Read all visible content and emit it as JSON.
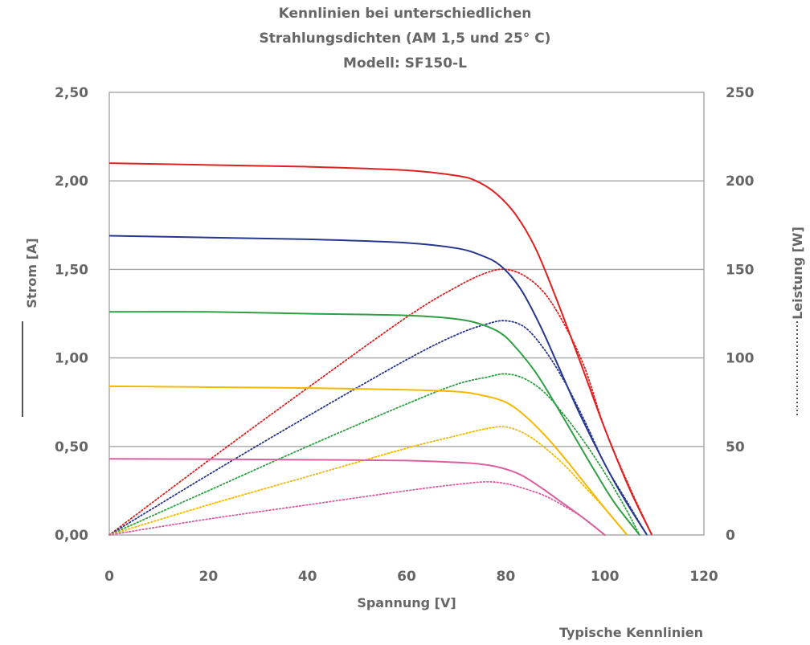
{
  "chart_data": {
    "type": "line",
    "title": [
      "Kennlinien bei unterschiedlichen",
      "Strahlungsdichten (AM 1,5 und 25° C)",
      "Modell: SF150-L"
    ],
    "xlabel": "Spannung [V]",
    "ylabel": "Strom [A]",
    "y2label": "Leistung [W]",
    "footnote": "Typische Kennlinien",
    "xlim": [
      0,
      120
    ],
    "ylim": [
      0,
      2.5
    ],
    "y2lim": [
      0,
      250
    ],
    "x_ticks": [
      "0",
      "20",
      "40",
      "60",
      "80",
      "100",
      "120"
    ],
    "y_ticks": [
      "0,00",
      "0,50",
      "1,00",
      "1,50",
      "2,00",
      "2,50"
    ],
    "y2_ticks": [
      "0",
      "50",
      "100",
      "150",
      "200",
      "250"
    ],
    "grid": "horizontal",
    "line_styles": {
      "current": "solid",
      "power": "dotted"
    },
    "series": [
      {
        "color": "#e02020",
        "current": {
          "x": [
            0,
            20,
            40,
            60,
            70,
            74,
            78,
            82,
            86,
            90,
            95,
            100,
            105,
            109.5
          ],
          "y": [
            2.1,
            2.09,
            2.08,
            2.06,
            2.03,
            2.0,
            1.93,
            1.81,
            1.62,
            1.35,
            0.98,
            0.6,
            0.26,
            0.0
          ]
        },
        "power": {
          "x": [
            0,
            20,
            40,
            60,
            70,
            76,
            80,
            84,
            88,
            92,
            96,
            100,
            105,
            109.5
          ],
          "y": [
            0,
            42,
            83,
            123,
            140,
            148,
            150,
            146,
            136,
            118,
            94,
            60,
            27,
            0
          ]
        }
      },
      {
        "color": "#26378d",
        "current": {
          "x": [
            0,
            20,
            40,
            60,
            70,
            75,
            79,
            83,
            87,
            91,
            95,
            100,
            104,
            108.5
          ],
          "y": [
            1.69,
            1.68,
            1.67,
            1.65,
            1.62,
            1.58,
            1.52,
            1.39,
            1.18,
            0.93,
            0.68,
            0.4,
            0.2,
            0.0
          ]
        },
        "power": {
          "x": [
            0,
            20,
            40,
            60,
            70,
            76,
            80,
            84,
            88,
            92,
            96,
            100,
            104,
            108.5
          ],
          "y": [
            0,
            34,
            67,
            99,
            113,
            119,
            121,
            117,
            104,
            86,
            64,
            40,
            21,
            0
          ]
        }
      },
      {
        "color": "#2ea043",
        "current": {
          "x": [
            0,
            20,
            40,
            60,
            70,
            75,
            79,
            82,
            86,
            90,
            94,
            98,
            102,
            107
          ],
          "y": [
            1.26,
            1.26,
            1.25,
            1.24,
            1.22,
            1.19,
            1.14,
            1.06,
            0.92,
            0.74,
            0.55,
            0.36,
            0.18,
            0.0
          ]
        },
        "power": {
          "x": [
            0,
            20,
            40,
            60,
            70,
            76,
            80,
            84,
            88,
            92,
            96,
            100,
            104,
            107
          ],
          "y": [
            0,
            25,
            50,
            74,
            85,
            89,
            91,
            88,
            80,
            67,
            52,
            35,
            16,
            0
          ]
        }
      },
      {
        "color": "#f5b800",
        "current": {
          "x": [
            0,
            20,
            40,
            60,
            70,
            75,
            80,
            84,
            88,
            92,
            96,
            100,
            104.5
          ],
          "y": [
            0.84,
            0.835,
            0.83,
            0.82,
            0.81,
            0.79,
            0.75,
            0.67,
            0.56,
            0.43,
            0.29,
            0.15,
            0.0
          ]
        },
        "power": {
          "x": [
            0,
            20,
            40,
            60,
            70,
            76,
            80,
            84,
            88,
            92,
            96,
            100,
            104.5
          ],
          "y": [
            0,
            17,
            33,
            49,
            56,
            60,
            61,
            57,
            49,
            39,
            27,
            15,
            0
          ]
        }
      },
      {
        "color": "#d9609e",
        "current": {
          "x": [
            0,
            20,
            40,
            60,
            70,
            75,
            79,
            83,
            87,
            91,
            95,
            100
          ],
          "y": [
            0.43,
            0.428,
            0.425,
            0.42,
            0.41,
            0.4,
            0.38,
            0.34,
            0.27,
            0.19,
            0.11,
            0.0
          ]
        },
        "power": {
          "x": [
            0,
            20,
            40,
            60,
            70,
            76,
            80,
            84,
            88,
            92,
            96,
            100
          ],
          "y": [
            0,
            9,
            17,
            25,
            28.5,
            30,
            29,
            26,
            22,
            16,
            9,
            0
          ]
        }
      }
    ]
  }
}
